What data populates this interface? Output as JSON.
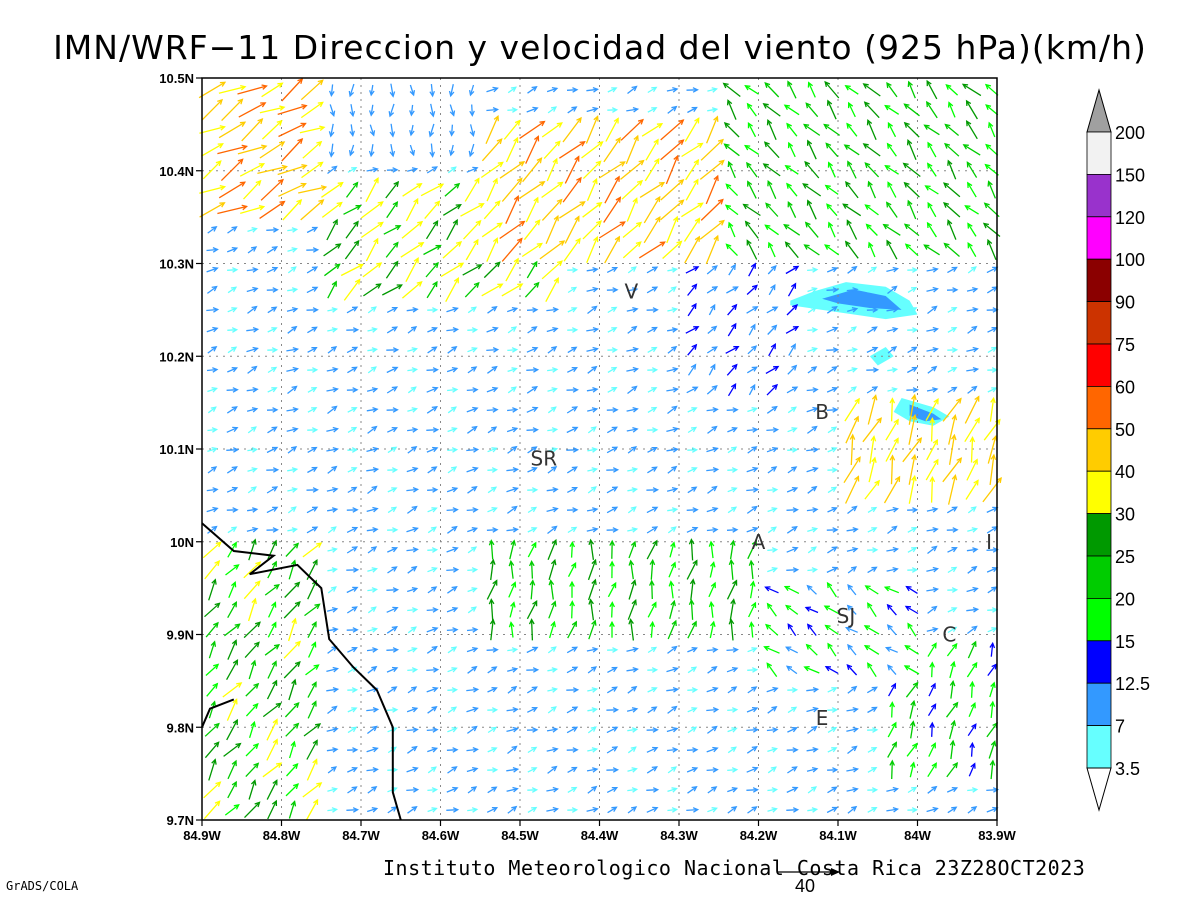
{
  "title": "IMN/WRF−11 Direccion y velocidad del viento (925 hPa)(km/h)",
  "footer": "Instituto Meteorologico Nacional Costa Rica 23Z28OCT2023",
  "software": "GrADS/COLA",
  "reference_vector": "40",
  "axes": {
    "x_ticks": [
      "84.9W",
      "84.8W",
      "84.7W",
      "84.6W",
      "84.5W",
      "84.4W",
      "84.3W",
      "84.2W",
      "84.1W",
      "84W",
      "83.9W"
    ],
    "y_ticks": [
      "10.5N",
      "10.4N",
      "10.3N",
      "10.2N",
      "10.1N",
      "10N",
      "9.9N",
      "9.8N",
      "9.7N"
    ],
    "lon_range": [
      -84.9,
      -83.9
    ],
    "lat_range": [
      9.7,
      10.5
    ],
    "grid": true
  },
  "places": [
    {
      "label": "V",
      "lon": -84.36,
      "lat": 10.27
    },
    {
      "label": "SR",
      "lon": -84.47,
      "lat": 10.09
    },
    {
      "label": "B",
      "lon": -84.12,
      "lat": 10.14
    },
    {
      "label": "A",
      "lon": -84.2,
      "lat": 10.0
    },
    {
      "label": "I",
      "lon": -83.91,
      "lat": 10.0
    },
    {
      "label": "SJ",
      "lon": -84.09,
      "lat": 9.92
    },
    {
      "label": "C",
      "lon": -83.96,
      "lat": 9.9
    },
    {
      "label": "E",
      "lon": -84.12,
      "lat": 9.81
    }
  ],
  "colorbar": {
    "labels": [
      "200",
      "150",
      "120",
      "100",
      "90",
      "75",
      "60",
      "50",
      "40",
      "30",
      "25",
      "20",
      "15",
      "12.5",
      "7",
      "3.5"
    ],
    "colors": [
      "#f2f2f2",
      "#9932cc",
      "#ff00ff",
      "#8b0000",
      "#cc3300",
      "#ff0000",
      "#ff6600",
      "#ffcc00",
      "#ffff00",
      "#009900",
      "#00cc00",
      "#00ff00",
      "#0000ff",
      "#3399ff",
      "#66ffff"
    ],
    "over_color": "#a0a0a0"
  },
  "coastline": [
    [
      -84.9,
      10.02
    ],
    [
      -84.86,
      9.99
    ],
    [
      -84.81,
      9.985
    ],
    [
      -84.84,
      9.965
    ],
    [
      -84.78,
      9.975
    ],
    [
      -84.75,
      9.95
    ],
    [
      -84.74,
      9.895
    ],
    [
      -84.71,
      9.865
    ],
    [
      -84.68,
      9.84
    ],
    [
      -84.66,
      9.8
    ],
    [
      -84.66,
      9.76
    ],
    [
      -84.66,
      9.73
    ],
    [
      -84.65,
      9.7
    ]
  ],
  "coastline_spur": [
    [
      -84.9,
      9.8
    ],
    [
      -84.89,
      9.82
    ],
    [
      -84.86,
      9.83
    ]
  ],
  "shaded_areas": [
    {
      "color": "#66ffff",
      "points": [
        [
          -84.16,
          10.26
        ],
        [
          -84.13,
          10.27
        ],
        [
          -84.09,
          10.28
        ],
        [
          -84.04,
          10.275
        ],
        [
          -84.01,
          10.26
        ],
        [
          -84.0,
          10.245
        ],
        [
          -84.04,
          10.24
        ],
        [
          -84.08,
          10.245
        ],
        [
          -84.12,
          10.25
        ],
        [
          -84.16,
          10.255
        ]
      ]
    },
    {
      "color": "#3399ff",
      "points": [
        [
          -84.12,
          10.262
        ],
        [
          -84.08,
          10.272
        ],
        [
          -84.04,
          10.265
        ],
        [
          -84.02,
          10.25
        ],
        [
          -84.06,
          10.252
        ],
        [
          -84.1,
          10.257
        ]
      ]
    },
    {
      "color": "#66ffff",
      "points": [
        [
          -84.04,
          10.21
        ],
        [
          -84.03,
          10.2
        ],
        [
          -84.05,
          10.19
        ],
        [
          -84.06,
          10.2
        ]
      ]
    },
    {
      "color": "#66ffff",
      "points": [
        [
          -84.02,
          10.155
        ],
        [
          -83.98,
          10.145
        ],
        [
          -83.96,
          10.135
        ],
        [
          -83.98,
          10.125
        ],
        [
          -84.01,
          10.13
        ],
        [
          -84.03,
          10.14
        ]
      ]
    },
    {
      "color": "#3399ff",
      "points": [
        [
          -84.01,
          10.148
        ],
        [
          -83.98,
          10.138
        ],
        [
          -83.97,
          10.132
        ],
        [
          -83.99,
          10.13
        ],
        [
          -84.01,
          10.136
        ]
      ]
    }
  ],
  "wind_field": {
    "units": "km/h",
    "regions": [
      {
        "lon": [
          -84.9,
          -84.75
        ],
        "lat": [
          10.35,
          10.5
        ],
        "dir_deg": 30,
        "speed": 45
      },
      {
        "lon": [
          -84.75,
          -84.55
        ],
        "lat": [
          10.42,
          10.5
        ],
        "dir_deg": 270,
        "speed": 10
      },
      {
        "lon": [
          -84.55,
          -84.25
        ],
        "lat": [
          10.3,
          10.45
        ],
        "dir_deg": 50,
        "speed": 42
      },
      {
        "lon": [
          -84.45,
          -84.3
        ],
        "lat": [
          10.38,
          10.42
        ],
        "dir_deg": 80,
        "speed": 50
      },
      {
        "lon": [
          -84.25,
          -83.9
        ],
        "lat": [
          10.3,
          10.5
        ],
        "dir_deg": 130,
        "speed": 22
      },
      {
        "lon": [
          -84.75,
          -84.45
        ],
        "lat": [
          10.25,
          10.4
        ],
        "dir_deg": 45,
        "speed": 30
      },
      {
        "lon": [
          -84.3,
          -84.15
        ],
        "lat": [
          10.15,
          10.3
        ],
        "dir_deg": 45,
        "speed": 12
      },
      {
        "lon": [
          -84.1,
          -83.9
        ],
        "lat": [
          10.05,
          10.15
        ],
        "dir_deg": 70,
        "speed": 40
      },
      {
        "lon": [
          -84.9,
          -84.75
        ],
        "lat": [
          9.7,
          10.0
        ],
        "dir_deg": 55,
        "speed": 25
      },
      {
        "lon": [
          -84.55,
          -84.2
        ],
        "lat": [
          9.9,
          10.0
        ],
        "dir_deg": 80,
        "speed": 22
      },
      {
        "lon": [
          -84.2,
          -84.0
        ],
        "lat": [
          9.85,
          9.95
        ],
        "dir_deg": 140,
        "speed": 15
      },
      {
        "lon": [
          -84.05,
          -83.9
        ],
        "lat": [
          9.75,
          9.9
        ],
        "dir_deg": 70,
        "speed": 18
      },
      {
        "lon": [
          -84.5,
          -84.3
        ],
        "lat": [
          10.05,
          10.15
        ],
        "dir_deg": 20,
        "speed": 8
      }
    ],
    "default_dir_deg": 20,
    "default_speed": 8
  }
}
